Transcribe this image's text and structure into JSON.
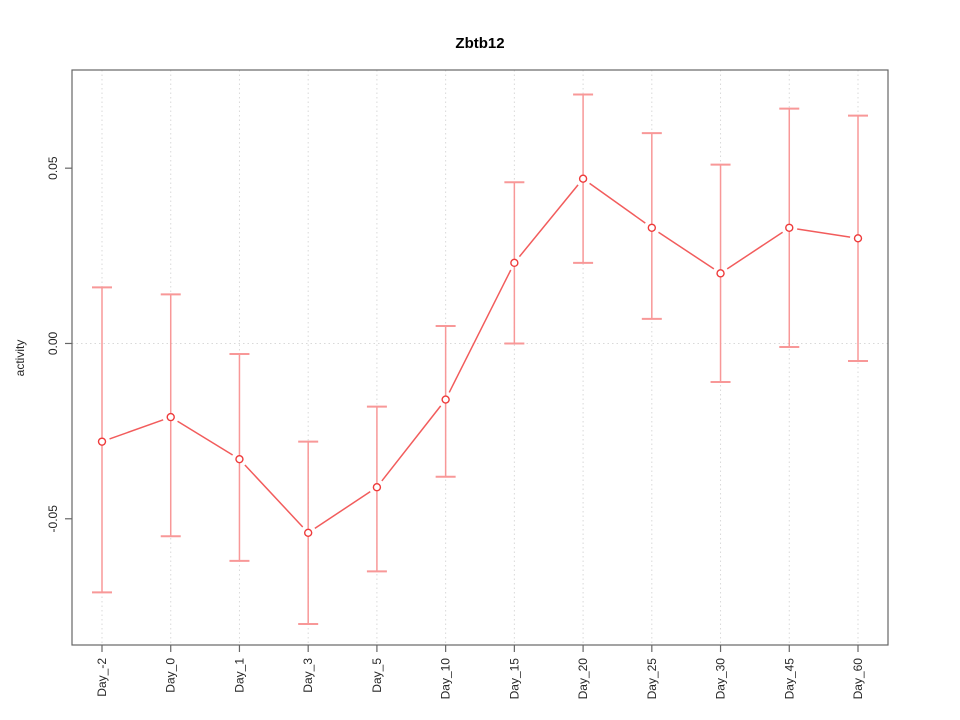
{
  "chart_data": {
    "type": "line",
    "title": "Zbtb12",
    "xlabel": "",
    "ylabel": "activity",
    "categories": [
      "Day_-2",
      "Day_0",
      "Day_1",
      "Day_3",
      "Day_5",
      "Day_10",
      "Day_15",
      "Day_20",
      "Day_25",
      "Day_30",
      "Day_45",
      "Day_60"
    ],
    "series": [
      {
        "name": "activity",
        "values": [
          -0.028,
          -0.021,
          -0.033,
          -0.054,
          -0.041,
          -0.016,
          0.023,
          0.047,
          0.033,
          0.02,
          0.033,
          0.03
        ],
        "upper": [
          0.016,
          0.014,
          -0.003,
          -0.028,
          -0.018,
          0.005,
          0.046,
          0.071,
          0.06,
          0.051,
          0.067,
          0.065
        ],
        "lower": [
          -0.071,
          -0.055,
          -0.062,
          -0.08,
          -0.065,
          -0.038,
          0.0,
          0.023,
          0.007,
          -0.011,
          -0.001,
          -0.005
        ]
      }
    ],
    "yticks": [
      -0.05,
      0,
      0.05
    ],
    "ytick_labels": [
      "-0.05",
      "0.00",
      "0.05"
    ],
    "ylim": [
      -0.086,
      0.078
    ],
    "grid": {
      "vertical": "dotted at each category",
      "horizontal": "dotted at y=0"
    },
    "legend": "none",
    "point_style": "open-circle",
    "colors": {
      "error_bar": "#f89898",
      "line": "#f25c5c",
      "point_stroke": "#ee3b3b",
      "grid": "#d9d9d9",
      "axis": "#666666",
      "zero_line": "#d9d9d9"
    }
  }
}
